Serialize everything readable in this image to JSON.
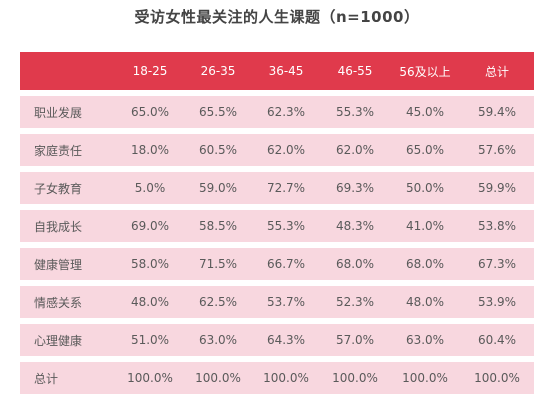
{
  "title": "受访女性最关注的人生课题（n=1000）",
  "colors": {
    "header_bg": "#e03a4c",
    "header_text": "#ffffff",
    "row_bg": "#f8d7df",
    "text": "#5a5a5a"
  },
  "chart_data": {
    "type": "table",
    "title": "受访女性最关注的人生课题（n=1000）",
    "columns": [
      "",
      "18-25",
      "26-35",
      "36-45",
      "46-55",
      "56及以上",
      "总计"
    ],
    "rows": [
      {
        "label": "职业发展",
        "values": [
          "65.0%",
          "65.5%",
          "62.3%",
          "55.3%",
          "45.0%",
          "59.4%"
        ]
      },
      {
        "label": "家庭责任",
        "values": [
          "18.0%",
          "60.5%",
          "62.0%",
          "62.0%",
          "65.0%",
          "57.6%"
        ]
      },
      {
        "label": "子女教育",
        "values": [
          "5.0%",
          "59.0%",
          "72.7%",
          "69.3%",
          "50.0%",
          "59.9%"
        ]
      },
      {
        "label": "自我成长",
        "values": [
          "69.0%",
          "58.5%",
          "55.3%",
          "48.3%",
          "41.0%",
          "53.8%"
        ]
      },
      {
        "label": "健康管理",
        "values": [
          "58.0%",
          "71.5%",
          "66.7%",
          "68.0%",
          "68.0%",
          "67.3%"
        ]
      },
      {
        "label": "情感关系",
        "values": [
          "48.0%",
          "62.5%",
          "53.7%",
          "52.3%",
          "48.0%",
          "53.9%"
        ]
      },
      {
        "label": "心理健康",
        "values": [
          "51.0%",
          "63.0%",
          "64.3%",
          "57.0%",
          "63.0%",
          "60.4%"
        ]
      },
      {
        "label": "总计",
        "values": [
          "100.0%",
          "100.0%",
          "100.0%",
          "100.0%",
          "100.0%",
          "100.0%"
        ]
      }
    ]
  }
}
